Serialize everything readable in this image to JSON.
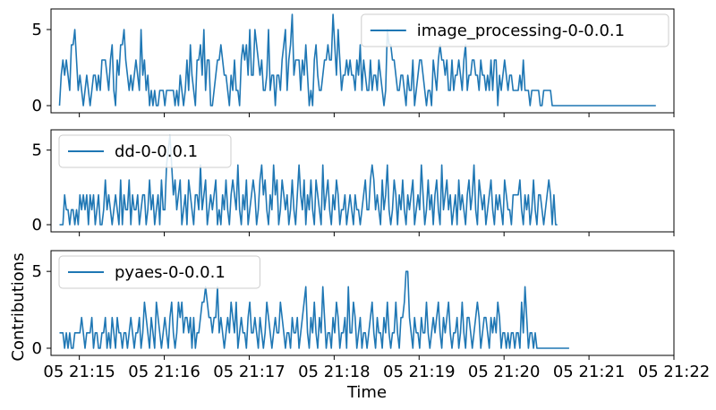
{
  "figure": {
    "xlabel": "Time",
    "ylabel": "Contributions",
    "x_tick_labels": [
      "05 21:15",
      "05 21:16",
      "05 21:17",
      "05 21:18",
      "05 21:19",
      "05 21:20",
      "05 21:21",
      "05 21:22"
    ],
    "y_tick_labels": [
      "0",
      "5"
    ]
  },
  "colors": {
    "series": "#1f77b4",
    "axis": "#000000",
    "background": "#ffffff"
  },
  "chart_data": [
    {
      "type": "line",
      "legend_placement": "top-right",
      "grid": false,
      "xlim": [
        "05 21:14:40",
        "05 21:22:00"
      ],
      "ylim": [
        0,
        6
      ],
      "series": [
        {
          "name": "image_processing-0-0.0.1",
          "x_start": "05 21:14:46",
          "x_step_seconds": 1.2,
          "values": [
            0,
            2,
            3,
            2,
            3,
            2,
            1,
            4,
            4,
            5,
            3,
            1,
            2,
            1,
            0,
            1,
            2,
            1,
            0,
            1,
            2,
            2,
            1,
            2,
            1,
            3,
            3,
            3,
            2,
            1,
            3,
            4,
            1,
            0,
            3,
            2,
            4,
            4,
            5,
            3,
            2,
            1,
            2,
            1,
            2,
            3,
            2,
            1,
            5,
            2,
            3,
            1,
            2,
            0,
            1,
            0,
            1,
            0,
            0,
            1,
            1,
            1,
            0,
            1,
            1,
            1,
            1,
            1,
            0,
            1,
            0,
            2,
            1,
            0,
            1,
            3,
            1,
            4,
            2,
            1,
            0,
            3,
            3,
            4,
            2,
            5,
            1,
            3,
            3,
            0,
            0,
            1,
            2,
            3,
            3,
            4,
            3,
            2,
            2,
            1,
            0,
            2,
            1,
            3,
            1,
            1,
            0,
            3,
            4,
            3,
            4,
            2,
            5,
            2,
            2,
            5,
            4,
            3,
            2,
            3,
            1,
            1,
            2,
            5,
            1,
            2,
            2,
            0,
            2,
            2,
            1,
            3,
            4,
            5,
            1,
            3,
            4,
            6,
            2,
            3,
            3,
            3,
            1,
            3,
            2,
            4,
            2,
            0,
            1,
            0,
            3,
            4,
            2,
            1,
            1,
            2,
            3,
            3,
            4,
            3,
            3,
            6,
            4,
            2,
            5,
            3,
            1,
            2,
            2,
            3,
            2,
            3,
            2,
            2,
            1,
            3,
            2,
            4,
            1,
            3,
            2,
            1,
            1,
            3,
            1,
            2,
            2,
            1,
            3,
            2,
            1,
            0,
            1,
            5,
            4,
            4,
            3,
            3,
            2,
            1,
            1,
            2,
            2,
            1,
            0,
            2,
            1,
            1,
            3,
            0,
            1,
            2,
            3,
            3,
            2,
            1,
            0,
            1,
            1,
            0,
            3,
            2,
            1,
            3,
            4,
            3,
            3,
            2,
            3,
            1,
            1,
            3,
            1,
            2,
            2,
            3,
            2,
            1,
            3,
            4,
            1,
            2,
            2,
            3,
            3,
            2,
            2,
            1,
            3,
            2,
            2,
            1,
            2,
            1,
            3,
            1,
            3,
            3,
            0,
            2,
            1,
            2,
            3,
            2,
            1,
            2,
            2,
            1,
            1,
            1,
            1,
            2,
            1,
            3,
            1,
            1,
            1,
            0,
            1,
            1,
            1,
            1,
            1,
            0,
            0,
            1,
            1,
            1,
            1,
            1,
            0,
            0,
            0,
            0,
            0,
            0,
            0,
            0,
            0,
            0,
            0,
            0,
            0,
            0,
            0,
            0,
            0,
            0,
            0,
            0,
            0,
            0,
            0,
            0,
            0,
            0,
            0,
            0,
            0,
            0,
            0,
            0,
            0,
            0,
            0,
            0,
            0,
            0,
            0,
            0,
            0,
            0,
            0,
            0,
            0,
            0,
            0,
            0,
            0,
            0,
            0,
            0,
            0,
            0,
            0,
            0,
            0,
            0,
            0,
            0,
            0,
            0
          ]
        }
      ]
    },
    {
      "type": "line",
      "legend_placement": "top-left",
      "grid": false,
      "xlim": [
        "05 21:14:40",
        "05 21:22:00"
      ],
      "ylim": [
        0,
        6
      ],
      "series": [
        {
          "name": "dd-0-0.0.1",
          "x_start": "05 21:14:46",
          "x_step_seconds": 1.2,
          "values": [
            0,
            0,
            0,
            2,
            1,
            1,
            0,
            1,
            1,
            0,
            1,
            0,
            2,
            1,
            2,
            1,
            2,
            0,
            2,
            1,
            2,
            0,
            1,
            2,
            0,
            0,
            1,
            3,
            1,
            2,
            1,
            0,
            1,
            2,
            1,
            0,
            3,
            0,
            2,
            1,
            1,
            3,
            0,
            2,
            1,
            1,
            2,
            0,
            1,
            2,
            2,
            0,
            1,
            3,
            1,
            2,
            0,
            1,
            2,
            0,
            3,
            1,
            1,
            4,
            5,
            6,
            4,
            2,
            3,
            1,
            2,
            3,
            0,
            1,
            2,
            0,
            3,
            2,
            1,
            0,
            2,
            2,
            1,
            4,
            1,
            2,
            3,
            0,
            1,
            2,
            1,
            2,
            3,
            0,
            1,
            0,
            2,
            1,
            3,
            1,
            0,
            2,
            3,
            2,
            1,
            4,
            1,
            0,
            2,
            1,
            3,
            0,
            1,
            2,
            3,
            2,
            0,
            1,
            3,
            4,
            2,
            3,
            1,
            0,
            2,
            1,
            4,
            2,
            3,
            0,
            1,
            3,
            2,
            1,
            2,
            0,
            1,
            3,
            1,
            0,
            2,
            4,
            2,
            1,
            3,
            0,
            2,
            1,
            3,
            1,
            0,
            3,
            2,
            1,
            0,
            4,
            1,
            2,
            3,
            1,
            0,
            2,
            1,
            3,
            2,
            0,
            1,
            1,
            2,
            0,
            1,
            2,
            1,
            0,
            2,
            1,
            1,
            0,
            1,
            2,
            3,
            1,
            1,
            3,
            4,
            3,
            1,
            2,
            1,
            0,
            3,
            1,
            2,
            4,
            1,
            0,
            1,
            3,
            2,
            0,
            2,
            1,
            3,
            1,
            0,
            2,
            1,
            2,
            3,
            0,
            1,
            2,
            1,
            4,
            2,
            0,
            1,
            3,
            1,
            2,
            0,
            2,
            3,
            1,
            0,
            4,
            1,
            2,
            3,
            1,
            2,
            0,
            1,
            2,
            0,
            3,
            1,
            2,
            1,
            0,
            2,
            3,
            1,
            2,
            4,
            1,
            0,
            3,
            2,
            1,
            2,
            0,
            1,
            2,
            3,
            1,
            0,
            2,
            1,
            2,
            1,
            0,
            3,
            2,
            1,
            1,
            0,
            2,
            2,
            2,
            2,
            3,
            1,
            0,
            2,
            1,
            2,
            0,
            1,
            3,
            1,
            0,
            2,
            2,
            1,
            0,
            1,
            2,
            3,
            2,
            0,
            2,
            0,
            0
          ]
        }
      ]
    },
    {
      "type": "line",
      "legend_placement": "top-left",
      "grid": false,
      "xlim": [
        "05 21:14:40",
        "05 21:22:00"
      ],
      "ylim": [
        0,
        6
      ],
      "series": [
        {
          "name": "pyaes-0-0.0.1",
          "x_start": "05 21:14:46",
          "x_step_seconds": 1.2,
          "values": [
            1,
            1,
            1,
            0,
            1,
            0,
            1,
            0,
            0,
            1,
            1,
            1,
            1,
            2,
            1,
            0,
            1,
            1,
            1,
            2,
            0,
            1,
            1,
            0,
            0,
            1,
            1,
            2,
            0,
            1,
            0,
            2,
            1,
            0,
            2,
            1,
            1,
            0,
            1,
            1,
            0,
            1,
            2,
            1,
            0,
            1,
            1,
            2,
            0,
            1,
            3,
            2,
            1,
            0,
            2,
            1,
            0,
            3,
            2,
            1,
            0,
            1,
            2,
            1,
            0,
            2,
            3,
            1,
            0,
            1,
            3,
            2,
            3,
            1,
            2,
            2,
            1,
            2,
            0,
            2,
            0,
            1,
            1,
            2,
            3,
            3,
            4,
            3,
            2,
            2,
            1,
            2,
            2,
            4,
            1,
            2,
            1,
            0,
            1,
            2,
            1,
            3,
            2,
            1,
            3,
            0,
            1,
            2,
            1,
            1,
            0,
            2,
            3,
            1,
            1,
            2,
            1,
            0,
            2,
            1,
            0,
            1,
            3,
            2,
            1,
            0,
            1,
            2,
            1,
            1,
            3,
            2,
            1,
            0,
            1,
            1,
            0,
            2,
            1,
            1,
            2,
            0,
            1,
            2,
            3,
            4,
            1,
            0,
            2,
            1,
            3,
            1,
            0,
            2,
            1,
            4,
            2,
            0,
            1,
            1,
            0,
            2,
            1,
            3,
            2,
            0,
            1,
            1,
            2,
            0,
            4,
            1,
            1,
            3,
            2,
            0,
            1,
            2,
            0,
            1,
            1,
            0,
            1,
            2,
            3,
            1,
            0,
            2,
            1,
            1,
            0,
            2,
            1,
            3,
            1,
            0,
            1,
            1,
            3,
            1,
            0,
            2,
            2,
            3,
            5,
            5,
            2,
            1,
            0,
            2,
            1,
            1,
            0,
            2,
            1,
            1,
            3,
            1,
            0,
            1,
            2,
            1,
            2,
            3,
            1,
            0,
            2,
            1,
            2,
            3,
            1,
            0,
            1,
            1,
            2,
            0,
            1,
            3,
            1,
            0,
            2,
            2,
            1,
            0,
            1,
            2,
            3,
            2,
            0,
            1,
            2,
            2,
            1,
            0,
            2,
            1,
            2,
            1,
            3,
            2,
            0,
            1,
            1,
            0,
            1,
            0,
            1,
            1,
            0,
            1,
            1,
            0,
            3,
            1,
            4,
            2,
            0,
            1,
            1,
            0,
            1,
            0,
            0,
            0,
            0,
            0,
            0,
            0,
            0,
            0,
            0,
            0,
            0,
            0,
            0,
            0,
            0,
            0,
            0,
            0,
            0
          ]
        }
      ]
    }
  ]
}
